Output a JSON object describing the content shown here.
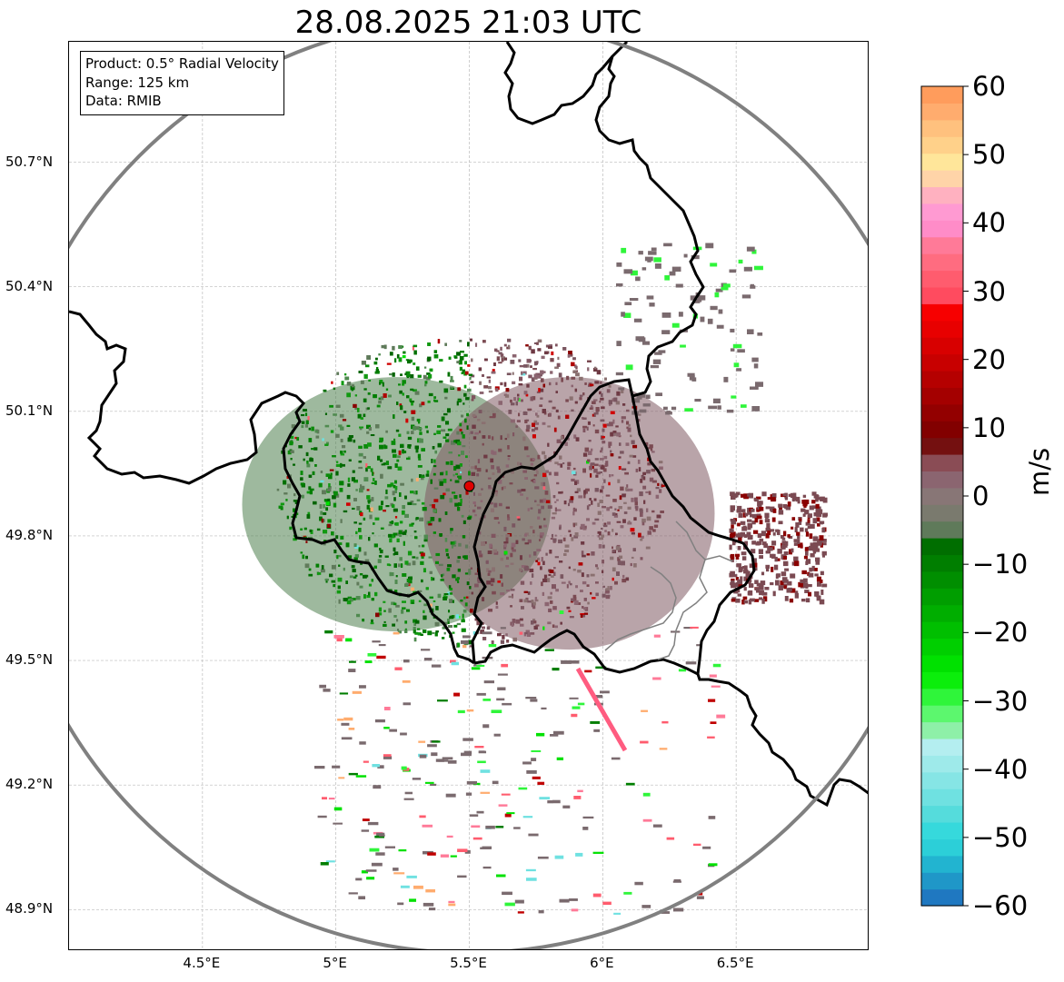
{
  "title": "28.08.2025 21:03 UTC",
  "info_box": {
    "product": "Product: 0.5° Radial Velocity",
    "range": "Range: 125 km",
    "data": "Data: RMIB"
  },
  "map": {
    "lon_range": [
      4.0,
      7.0
    ],
    "lat_range": [
      48.8,
      50.99
    ],
    "radar_site": {
      "lon": 5.5,
      "lat": 49.92
    },
    "range_ring_km": 125,
    "gridlines": true,
    "x_ticks": [
      {
        "value": 4.5,
        "label": "4.5°E"
      },
      {
        "value": 5.0,
        "label": "5°E"
      },
      {
        "value": 5.5,
        "label": "5.5°E"
      },
      {
        "value": 6.0,
        "label": "6°E"
      },
      {
        "value": 6.5,
        "label": "6.5°E"
      }
    ],
    "y_ticks": [
      {
        "value": 50.7,
        "label": "50.7°N"
      },
      {
        "value": 50.4,
        "label": "50.4°N"
      },
      {
        "value": 50.1,
        "label": "50.1°N"
      },
      {
        "value": 49.8,
        "label": "49.8°N"
      },
      {
        "value": 49.5,
        "label": "49.5°N"
      },
      {
        "value": 49.2,
        "label": "49.2°N"
      },
      {
        "value": 48.9,
        "label": "48.9°N"
      }
    ],
    "colors": {
      "borders": "#000000",
      "ring": "#808080",
      "grid": "#bbbbbb",
      "radar_marker": "#e00000",
      "subregion_borders": "#808080"
    }
  },
  "colorbar": {
    "min": -60,
    "max": 60,
    "unit": "m/s",
    "tick_labels": [
      "60",
      "50",
      "40",
      "30",
      "20",
      "10",
      "0",
      "−10",
      "−20",
      "−30",
      "−40",
      "−50",
      "−60"
    ],
    "tick_values": [
      60,
      50,
      40,
      30,
      20,
      10,
      0,
      -10,
      -20,
      -30,
      -40,
      -50,
      -60
    ],
    "colors_bottom_to_top": [
      "#1f78c1",
      "#1f97c8",
      "#22b4d0",
      "#2ccfd8",
      "#36d9dc",
      "#55dcdc",
      "#6fe1e1",
      "#86e5e5",
      "#9eeaea",
      "#b4eef0",
      "#8ef0a8",
      "#5cf76e",
      "#2ff53a",
      "#0bee0b",
      "#00e100",
      "#00cf00",
      "#00bf00",
      "#00ae00",
      "#009e00",
      "#008e00",
      "#007e00",
      "#006e00",
      "#5f7a5a",
      "#7a7a6e",
      "#887676",
      "#8b6570",
      "#8a4c55",
      "#741010",
      "#820000",
      "#930000",
      "#a40000",
      "#b50000",
      "#c80000",
      "#d80000",
      "#e80000",
      "#f70000",
      "#ff4b5f",
      "#ff5c6e",
      "#ff6c80",
      "#ff7a98",
      "#ff8cc8",
      "#ff9ad2",
      "#ffb1c0",
      "#ffd4a8",
      "#ffe69a",
      "#ffd18a",
      "#ffc17e",
      "#ffac6e",
      "#ff9c5c"
    ]
  }
}
